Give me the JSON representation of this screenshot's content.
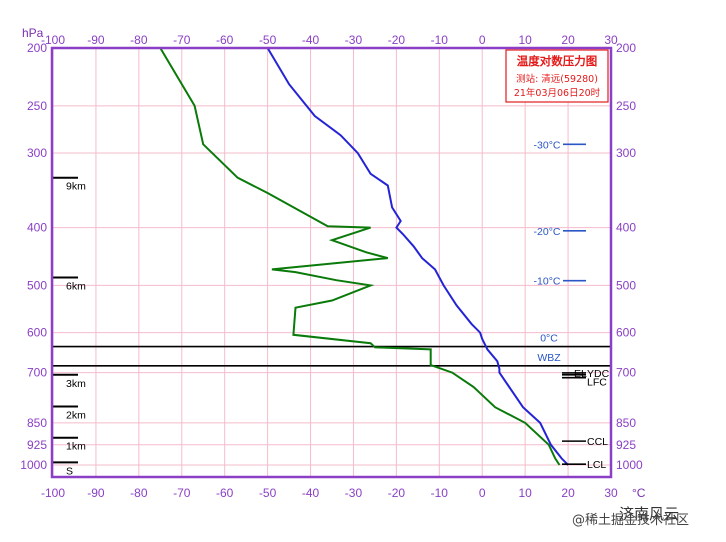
{
  "chart_data": {
    "type": "line",
    "title": "温度对数压力图",
    "station": "测站: 清远(59280)",
    "time": "21年03月06日20时",
    "x_unit": "°C",
    "y_unit": "hPa",
    "xlim": [
      -100,
      30
    ],
    "x_ticks": [
      -100,
      -90,
      -80,
      -70,
      -60,
      -50,
      -40,
      -30,
      -20,
      -10,
      0,
      10,
      20,
      30
    ],
    "y_ticks": [
      200,
      250,
      300,
      400,
      500,
      600,
      700,
      850,
      925,
      1000
    ],
    "temperature": [
      [
        1000,
        20
      ],
      [
        975,
        18.5
      ],
      [
        925,
        16
      ],
      [
        850,
        13.5
      ],
      [
        800,
        9.5
      ],
      [
        700,
        4
      ],
      [
        690,
        4
      ],
      [
        670,
        3.5
      ],
      [
        640,
        1.2
      ],
      [
        615,
        0
      ],
      [
        600,
        -0.5
      ],
      [
        580,
        -2.5
      ],
      [
        540,
        -6
      ],
      [
        500,
        -9
      ],
      [
        470,
        -11
      ],
      [
        450,
        -14
      ],
      [
        430,
        -16
      ],
      [
        410,
        -18.5
      ],
      [
        400,
        -20
      ],
      [
        390,
        -19
      ],
      [
        370,
        -21
      ],
      [
        340,
        -22
      ],
      [
        325,
        -26
      ],
      [
        300,
        -29
      ],
      [
        280,
        -33
      ],
      [
        260,
        -39
      ],
      [
        230,
        -45
      ],
      [
        200,
        -50
      ]
    ],
    "dewpoint": [
      [
        1000,
        18
      ],
      [
        975,
        17
      ],
      [
        925,
        15.5
      ],
      [
        850,
        10
      ],
      [
        800,
        3
      ],
      [
        740,
        -2
      ],
      [
        700,
        -7
      ],
      [
        680,
        -12
      ],
      [
        660,
        -12
      ],
      [
        640,
        -12
      ],
      [
        635,
        -25
      ],
      [
        625,
        -26
      ],
      [
        605,
        -44
      ],
      [
        545,
        -43.5
      ],
      [
        530,
        -35
      ],
      [
        500,
        -26
      ],
      [
        490,
        -34
      ],
      [
        475,
        -43.5
      ],
      [
        470,
        -49
      ],
      [
        450,
        -22
      ],
      [
        440,
        -27
      ],
      [
        420,
        -35
      ],
      [
        400,
        -26
      ],
      [
        398,
        -36
      ],
      [
        350,
        -50
      ],
      [
        330,
        -57
      ],
      [
        290,
        -65
      ],
      [
        250,
        -67
      ],
      [
        200,
        -75
      ]
    ],
    "isotherms": [
      {
        "label": "-30°C",
        "temp": -30,
        "p": 290
      },
      {
        "label": "-20°C",
        "temp": -20,
        "p": 405
      },
      {
        "label": "-10°C",
        "temp": -10,
        "p": 491
      }
    ],
    "levels": [
      {
        "label": "0°C",
        "p": 633
      },
      {
        "label": "WBZ",
        "p": 682
      }
    ],
    "right_markers": [
      {
        "label": "YDC",
        "p": 701
      },
      {
        "label": "EL",
        "p": 706
      },
      {
        "label": "LFC",
        "p": 714
      },
      {
        "label": "CCL",
        "p": 912
      },
      {
        "label": "LCL",
        "p": 997
      }
    ],
    "height_markers": [
      {
        "label": "9km",
        "p": 330
      },
      {
        "label": "6km",
        "p": 485
      },
      {
        "label": "3km",
        "p": 706
      },
      {
        "label": "2km",
        "p": 798
      },
      {
        "label": "1km",
        "p": 900
      },
      {
        "label": "S",
        "p": 990
      }
    ]
  },
  "watermark": {
    "left": "济南风云",
    "right": "@稀土掘金技术社区"
  }
}
